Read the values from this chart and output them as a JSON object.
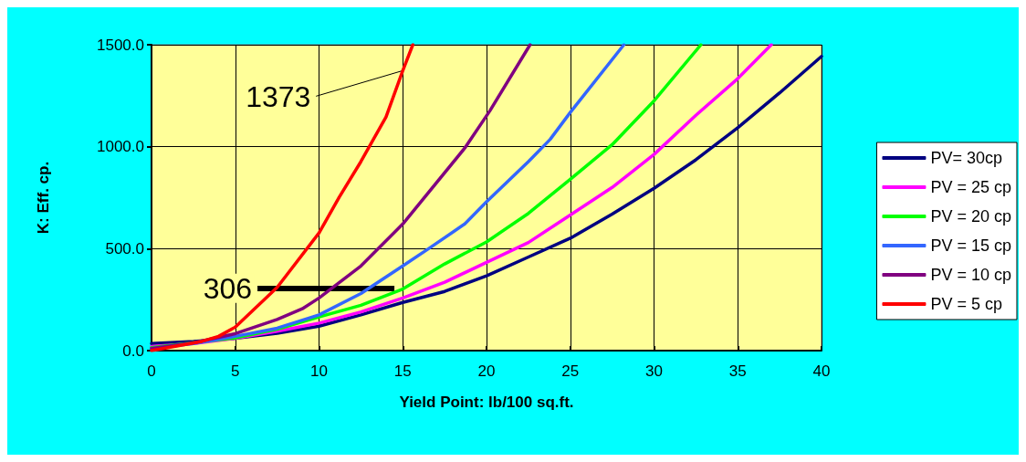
{
  "chart_data": {
    "type": "line",
    "xlabel": "Yield Point: lb/100 sq.ft.",
    "ylabel": "K: Eff. cp.",
    "xlim": [
      0,
      40
    ],
    "xticks": [
      0,
      5,
      10,
      15,
      20,
      25,
      30,
      35,
      40
    ],
    "ylim": [
      0,
      1500
    ],
    "yticks": [
      {
        "value": 0,
        "label": "0.0"
      },
      {
        "value": 500,
        "label": "500.0"
      },
      {
        "value": 1000,
        "label": "1000.0"
      },
      {
        "value": 1500,
        "label": "1500.0"
      }
    ],
    "grid": true,
    "legend": "right",
    "marker": "none",
    "line_style": "solid",
    "series": [
      {
        "name": "PV= 30cp",
        "color": "#000080",
        "x": [
          0,
          2.5,
          5,
          7.5,
          10,
          12.5,
          15,
          17.5,
          20,
          22.5,
          25,
          27.5,
          30,
          32.5,
          35,
          37.5,
          40
        ],
        "values": [
          35,
          45,
          60,
          85,
          120,
          175,
          236,
          290,
          367,
          459,
          551,
          669,
          796,
          936,
          1093,
          1264,
          1443
        ]
      },
      {
        "name": "PV = 25 cp",
        "color": "#ff00ff",
        "x": [
          0,
          2.5,
          5,
          7.5,
          10,
          12.5,
          15,
          17.5,
          20,
          22.5,
          25,
          27.5,
          30,
          32.5,
          35,
          37
        ],
        "values": [
          20,
          35,
          60,
          95,
          135,
          190,
          258,
          335,
          433,
          530,
          665,
          800,
          962,
          1154,
          1334,
          1500
        ]
      },
      {
        "name": "PV = 20 cp",
        "color": "#00ff00",
        "x": [
          0,
          2.5,
          5,
          7.5,
          10,
          12.5,
          15,
          17.5,
          20,
          22.5,
          25,
          27.5,
          30,
          32.8
        ],
        "values": [
          15,
          null,
          62,
          105,
          165,
          222,
          302,
          425,
          533,
          673,
          840,
          1010,
          1225,
          1500
        ]
      },
      {
        "name": "PV = 15 cp",
        "color": "#3366ff",
        "x": [
          0,
          2.5,
          5,
          7.5,
          10,
          12.5,
          15,
          16.6,
          18.7,
          20,
          22.5,
          23.8,
          25,
          28.2
        ],
        "values": [
          10,
          35,
          70,
          110,
          175,
          280,
          415,
          503,
          621,
          730,
          927,
          1036,
          1168,
          1500
        ]
      },
      {
        "name": "PV = 10 cp",
        "color": "#800080",
        "x": [
          0,
          2.5,
          5,
          7.5,
          9,
          10,
          12.5,
          15,
          18.7,
          20.2,
          22.6
        ],
        "values": [
          10,
          38,
          83,
          153,
          205,
          258,
          415,
          621,
          993,
          1176,
          1500
        ]
      },
      {
        "name": "PV = 5 cp",
        "color": "#ff0000",
        "x": [
          0,
          3,
          4,
          5,
          7.5,
          10,
          11.2,
          12.5,
          14,
          15,
          15.6
        ],
        "values": [
          0,
          45,
          70,
          115,
          310,
          577,
          752,
          927,
          1146,
          1373,
          1500
        ]
      }
    ],
    "annotations": [
      {
        "text": "1373",
        "x": 15,
        "y": 1373
      },
      {
        "text": "306",
        "x": 14.5,
        "y": 306
      }
    ]
  }
}
